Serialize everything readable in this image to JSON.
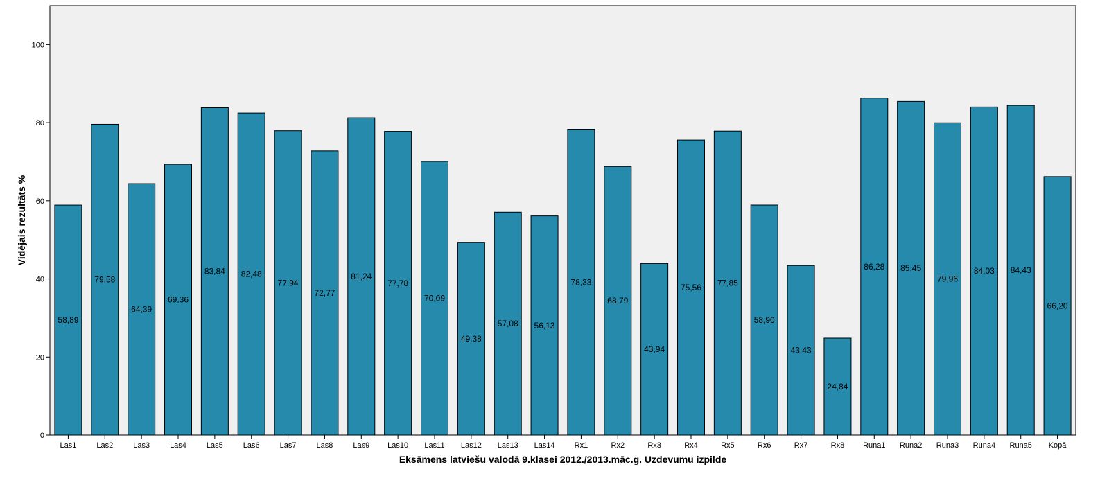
{
  "chart_data": {
    "type": "bar",
    "title": "",
    "xlabel": "Eksāmens latviešu valodā 9.klasei 2012./2013.māc.g. Uzdevumu izpilde",
    "ylabel": "Vidējais rezultāts %",
    "ylim": [
      0,
      110
    ],
    "yticks": [
      0,
      20,
      40,
      60,
      80,
      100
    ],
    "grid": false,
    "legend": "none",
    "categories": [
      "Las1",
      "Las2",
      "Las3",
      "Las4",
      "Las5",
      "Las6",
      "Las7",
      "Las8",
      "Las9",
      "Las10",
      "Las11",
      "Las12",
      "Las13",
      "Las14",
      "Rx1",
      "Rx2",
      "Rx3",
      "Rx4",
      "Rx5",
      "Rx6",
      "Rx7",
      "Rx8",
      "Runa1",
      "Runa2",
      "Runa3",
      "Runa4",
      "Runa5",
      "Kopā"
    ],
    "values": [
      58.89,
      79.58,
      64.39,
      69.36,
      83.84,
      82.48,
      77.94,
      72.77,
      81.24,
      77.78,
      70.09,
      49.38,
      57.08,
      56.13,
      78.33,
      68.79,
      43.94,
      75.56,
      77.85,
      58.9,
      43.43,
      24.84,
      86.28,
      85.45,
      79.96,
      84.03,
      84.43,
      66.2
    ],
    "data_labels": [
      "58,89",
      "79,58",
      "64,39",
      "69,36",
      "83,84",
      "82,48",
      "77,94",
      "72,77",
      "81,24",
      "77,78",
      "70,09",
      "49,38",
      "57,08",
      "56,13",
      "78,33",
      "68,79",
      "43,94",
      "75,56",
      "77,85",
      "58,90",
      "43,43",
      "24,84",
      "86,28",
      "85,45",
      "79,96",
      "84,03",
      "84,43",
      "66,20"
    ],
    "colors": {
      "bar": "#258aac",
      "bar_stroke": "#000000",
      "plot_bg": "#f0f0f0"
    }
  }
}
